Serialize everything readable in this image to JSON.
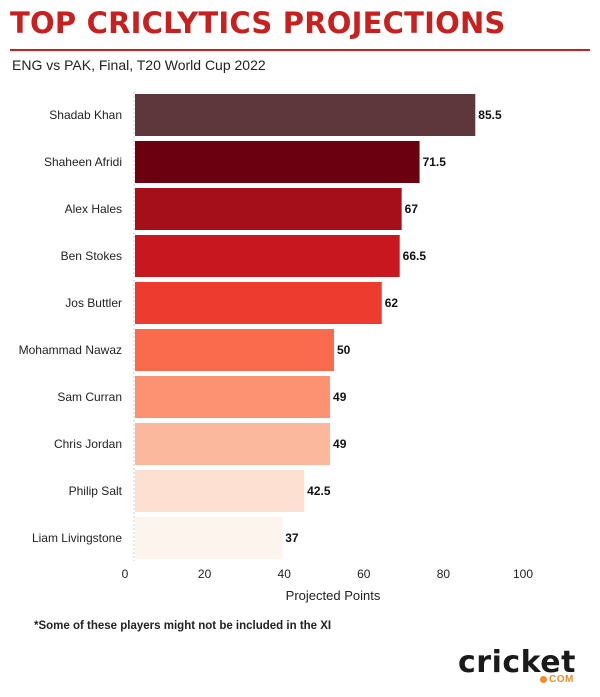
{
  "header": {
    "title": "TOP CRICLYTICS PROJECTIONS",
    "subtitle": "ENG vs PAK, Final, T20 World Cup 2022"
  },
  "footnote": "*Some of these players might not be included in the XI",
  "logo": {
    "word": "cricket",
    "suffix": "COM"
  },
  "chart_data": {
    "type": "bar",
    "orientation": "horizontal",
    "title": "TOP CRICLYTICS PROJECTIONS",
    "subtitle": "ENG vs PAK, Final, T20 World Cup 2022",
    "xlabel": "Projected Points",
    "ylabel": "",
    "xlim": [
      0,
      100
    ],
    "xticks": [
      0,
      20,
      40,
      60,
      80,
      100
    ],
    "grid": false,
    "legend": "none",
    "categories": [
      "Shadab Khan",
      "Shaheen Afridi",
      "Alex Hales",
      "Ben Stokes",
      "Jos Buttler",
      "Mohammad Nawaz",
      "Sam Curran",
      "Chris Jordan",
      "Philip Salt",
      "Liam Livingstone"
    ],
    "values": [
      85.5,
      71.5,
      67,
      66.5,
      62,
      50,
      49,
      49,
      42.5,
      37
    ],
    "value_labels": [
      "85.5",
      "71.5",
      "67",
      "66.5",
      "62",
      "50",
      "49",
      "49",
      "42.5",
      "37"
    ],
    "colors": [
      "#5e373c",
      "#6b0010",
      "#a40f1a",
      "#c9171f",
      "#ee3b2f",
      "#fa6a4d",
      "#fc9271",
      "#fcb89c",
      "#fde0d2",
      "#fef4ee"
    ]
  }
}
